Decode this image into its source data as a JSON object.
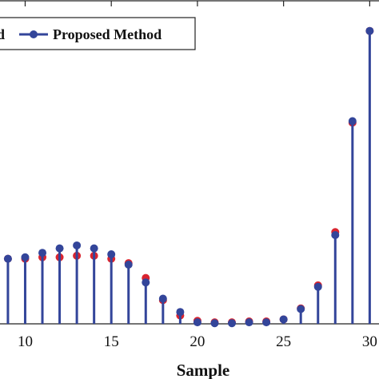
{
  "chart_data": {
    "type": "stem",
    "xlabel": "Sample",
    "ylabel": "",
    "xlim": [
      9.05,
      31.05
    ],
    "ylim": [
      0,
      1
    ],
    "x_ticks": [
      10,
      15,
      20,
      25,
      30
    ],
    "x_tick_labels": [
      "10",
      "15",
      "20",
      "25",
      "30"
    ],
    "grid": false,
    "legend": {
      "placement": "top-left",
      "entries": [
        "d",
        "Proposed Method"
      ]
    },
    "x": [
      9,
      10,
      11,
      12,
      13,
      14,
      15,
      16,
      17,
      18,
      19,
      20,
      21,
      22,
      23,
      24,
      25,
      26,
      27,
      28,
      29,
      30
    ],
    "series": [
      {
        "name": "d",
        "color": "#d9242f",
        "values": [
          0.22,
          0.22,
          0.225,
          0.225,
          0.23,
          0.23,
          0.22,
          0.205,
          0.155,
          0.08,
          0.028,
          0.01,
          0.005,
          0.005,
          0.008,
          0.008,
          0.015,
          0.052,
          0.13,
          0.31,
          0.68,
          0.99
        ]
      },
      {
        "name": "Proposed Method",
        "color": "#33459a",
        "values": [
          0.22,
          0.225,
          0.24,
          0.255,
          0.265,
          0.255,
          0.235,
          0.2,
          0.14,
          0.085,
          0.04,
          0.005,
          0.002,
          0.002,
          0.005,
          0.005,
          0.015,
          0.05,
          0.125,
          0.3,
          0.685,
          0.99
        ]
      }
    ]
  }
}
